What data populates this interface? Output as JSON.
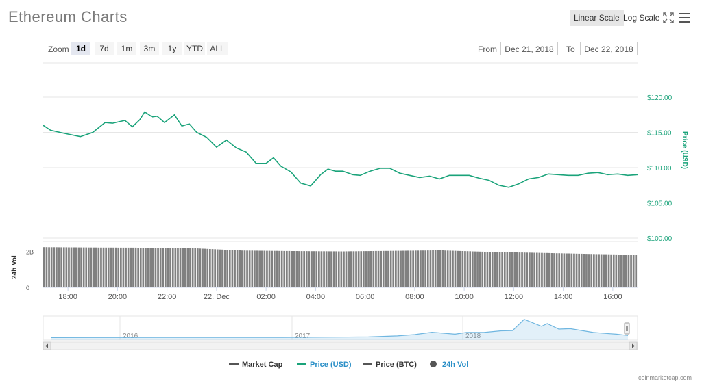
{
  "title": "Ethereum Charts",
  "scale": {
    "linear": "Linear Scale",
    "log": "Log Scale"
  },
  "zoom": {
    "label": "Zoom",
    "options": [
      "1d",
      "7d",
      "1m",
      "3m",
      "1y",
      "YTD",
      "ALL"
    ],
    "active": "1d"
  },
  "range": {
    "from_label": "From",
    "from": "Dec 21, 2018",
    "to_label": "To",
    "to": "Dec 22, 2018"
  },
  "credit": "coinmarketcap.com",
  "colors": {
    "price": "#1aa37a",
    "volume": "#808080",
    "navigator": "#6fb6e0"
  },
  "icons": [
    "expand-icon",
    "menu-icon",
    "left-arrow-icon",
    "right-arrow-icon"
  ],
  "chart_data": {
    "type": "line",
    "price_axis": {
      "label": "Price (USD)",
      "ticks": [
        "$100.00",
        "$105.00",
        "$110.00",
        "$115.00",
        "$120.00"
      ],
      "tick_values": [
        100,
        105,
        110,
        115,
        120
      ],
      "ylim": [
        100,
        120
      ]
    },
    "volume_axis": {
      "label": "24h Vol",
      "ticks": [
        "0",
        "2B"
      ],
      "tick_values": [
        0,
        2
      ],
      "ylim": [
        0,
        2.4
      ]
    },
    "x_ticks": [
      "18:00",
      "20:00",
      "22:00",
      "22. Dec",
      "02:00",
      "04:00",
      "06:00",
      "08:00",
      "10:00",
      "12:00",
      "14:00",
      "16:00"
    ],
    "x_range_hours": [
      17,
      41
    ],
    "price_series": {
      "name": "Price (USD)",
      "x": [
        17.0,
        17.3,
        17.8,
        18.5,
        19.0,
        19.5,
        19.8,
        20.3,
        20.6,
        20.9,
        21.1,
        21.4,
        21.6,
        21.9,
        22.3,
        22.6,
        22.9,
        23.2,
        23.6,
        24.0,
        24.4,
        24.8,
        25.2,
        25.6,
        26.0,
        26.3,
        26.6,
        27.0,
        27.4,
        27.8,
        28.2,
        28.5,
        28.8,
        29.1,
        29.5,
        29.8,
        30.2,
        30.6,
        31.0,
        31.4,
        31.8,
        32.2,
        32.6,
        33.0,
        33.4,
        33.8,
        34.2,
        34.6,
        35.0,
        35.4,
        35.8,
        36.2,
        36.6,
        37.0,
        37.4,
        37.8,
        38.2,
        38.6,
        39.0,
        39.4,
        39.8,
        40.2,
        40.6,
        41.0
      ],
      "y": [
        116.0,
        115.3,
        114.9,
        114.4,
        115.0,
        116.4,
        116.3,
        116.7,
        115.8,
        116.8,
        117.9,
        117.2,
        117.3,
        116.4,
        117.5,
        115.9,
        116.2,
        115.0,
        114.3,
        112.9,
        113.9,
        112.8,
        112.2,
        110.6,
        110.6,
        111.4,
        110.2,
        109.4,
        107.8,
        107.4,
        109.0,
        109.8,
        109.5,
        109.5,
        109.0,
        108.9,
        109.5,
        109.9,
        109.9,
        109.2,
        108.9,
        108.6,
        108.8,
        108.4,
        108.9,
        108.9,
        108.9,
        108.5,
        108.2,
        107.5,
        107.2,
        107.7,
        108.4,
        108.6,
        109.1,
        109.0,
        108.9,
        108.9,
        109.2,
        109.3,
        109.0,
        109.1,
        108.9,
        109.0
      ],
      "color": "#1aa37a"
    },
    "volume_series": {
      "name": "24h Vol",
      "x": [
        17,
        19,
        21,
        23,
        25,
        27,
        29,
        31,
        33,
        35,
        37,
        39,
        41
      ],
      "y": [
        2.24,
        2.22,
        2.21,
        2.18,
        2.05,
        2.02,
        2.0,
        2.03,
        2.06,
        1.97,
        1.92,
        1.86,
        1.81
      ],
      "unit": "B"
    },
    "navigator": {
      "labels": [
        "2016",
        "2017",
        "2018"
      ],
      "x": [
        0,
        0.2,
        0.4,
        0.55,
        0.6,
        0.63,
        0.66,
        0.7,
        0.72,
        0.75,
        0.78,
        0.8,
        0.82,
        0.85,
        0.86,
        0.88,
        0.9,
        0.92,
        0.94,
        0.96,
        0.98,
        1.0
      ],
      "y": [
        0.02,
        0.03,
        0.03,
        0.05,
        0.1,
        0.16,
        0.27,
        0.18,
        0.26,
        0.26,
        0.34,
        0.35,
        0.88,
        0.55,
        0.68,
        0.42,
        0.44,
        0.35,
        0.26,
        0.22,
        0.18,
        0.12
      ]
    },
    "legend": [
      "Market Cap",
      "Price (USD)",
      "Price (BTC)",
      "24h Vol"
    ],
    "legend_position": "bottom-center",
    "grid": true
  }
}
